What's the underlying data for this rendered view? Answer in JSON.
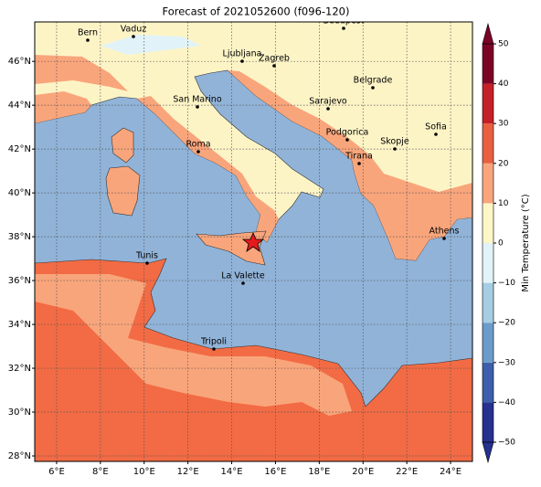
{
  "title": "Forecast of 2021052600 (f096-120)",
  "map": {
    "xlim": [
      5,
      25
    ],
    "ylim": [
      27.75,
      47.8
    ],
    "grid": true,
    "xticks": [
      {
        "value": 6,
        "label": "6°E"
      },
      {
        "value": 8,
        "label": "8°E"
      },
      {
        "value": 10,
        "label": "10°E"
      },
      {
        "value": 12,
        "label": "12°E"
      },
      {
        "value": 14,
        "label": "14°E"
      },
      {
        "value": 16,
        "label": "16°E"
      },
      {
        "value": 18,
        "label": "18°E"
      },
      {
        "value": 20,
        "label": "20°E"
      },
      {
        "value": 22,
        "label": "22°E"
      },
      {
        "value": 24,
        "label": "24°E"
      }
    ],
    "yticks": [
      {
        "value": 28,
        "label": "28°N"
      },
      {
        "value": 30,
        "label": "30°N"
      },
      {
        "value": 32,
        "label": "32°N"
      },
      {
        "value": 34,
        "label": "34°N"
      },
      {
        "value": 36,
        "label": "36°N"
      },
      {
        "value": 38,
        "label": "38°N"
      },
      {
        "value": 40,
        "label": "40°N"
      },
      {
        "value": 42,
        "label": "42°N"
      },
      {
        "value": 44,
        "label": "44°N"
      },
      {
        "value": 46,
        "label": "46°N"
      }
    ],
    "cities": [
      "Bern",
      "Vaduz",
      "Budapest",
      "Ljubljana",
      "Zagreb",
      "Belgrade",
      "Sarajevo",
      "San Marino",
      "Podgorica",
      "Skopje",
      "Sofia",
      "Roma",
      "Tirana",
      "Athens",
      "Tunis",
      "La Valette",
      "Tripoli"
    ],
    "colorbar": {
      "label": "Min Temperature (°C)",
      "clim": [
        -50,
        50
      ],
      "ticks": [
        {
          "value": -50,
          "label": "−50"
        },
        {
          "value": -40,
          "label": "−40"
        },
        {
          "value": -30,
          "label": "−30"
        },
        {
          "value": -20,
          "label": "−20"
        },
        {
          "value": -10,
          "label": "−10"
        },
        0,
        10,
        20,
        30,
        40,
        50
      ],
      "colors": [
        "#26308f",
        "#3d5fab",
        "#6b9ccb",
        "#a5cde3",
        "#e1f3f8",
        "#fdf6c6",
        "#f9a57b",
        "#e9603f",
        "#c52028",
        "#7b0326"
      ]
    }
  }
}
